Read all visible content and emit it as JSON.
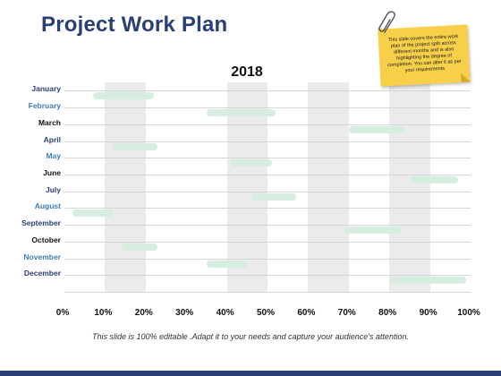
{
  "title": "Project Work Plan",
  "chart_data": {
    "type": "gantt",
    "title": "2018",
    "categories": [
      "January",
      "February",
      "March",
      "April",
      "May",
      "June",
      "July",
      "August",
      "September",
      "October",
      "November",
      "December"
    ],
    "month_colors": [
      "#2a3f73",
      "#3a7fb3",
      "#111111",
      "#2a3f73",
      "#3a7fb3",
      "#111111",
      "#2a3f73",
      "#3a7fb3",
      "#2a3f73",
      "#111111",
      "#3a7fb3",
      "#2a3f73"
    ],
    "x_tick_labels": [
      "0%",
      "10%",
      "20%",
      "30%",
      "40%",
      "50%",
      "60%",
      "70%",
      "80%",
      "90%",
      "100%"
    ],
    "xlim": [
      0,
      100
    ],
    "tasks": [
      {
        "start": 7,
        "end": 22
      },
      {
        "start": 35,
        "end": 52
      },
      {
        "start": 70,
        "end": 84
      },
      {
        "start": 12,
        "end": 23
      },
      {
        "start": 41,
        "end": 51
      },
      {
        "start": 85,
        "end": 97
      },
      {
        "start": 46,
        "end": 57
      },
      {
        "start": 2,
        "end": 12
      },
      {
        "start": 69,
        "end": 83
      },
      {
        "start": 14,
        "end": 23
      },
      {
        "start": 35,
        "end": 45
      },
      {
        "start": 80,
        "end": 99
      }
    ],
    "shaded_columns": [
      [
        10,
        20
      ],
      [
        40,
        50
      ],
      [
        60,
        70
      ],
      [
        80,
        90
      ]
    ],
    "bar_color": "#d7ede0",
    "band_color": "#ebebeb"
  },
  "note": {
    "text": "This slide covers the entire work plan of the project split across different months and is also highlighting the degree of completion. You can alter it as per your requirements",
    "color": "#f7cf49"
  },
  "caption": "This slide is 100% editable .Adapt it to your needs and capture your audience's attention."
}
